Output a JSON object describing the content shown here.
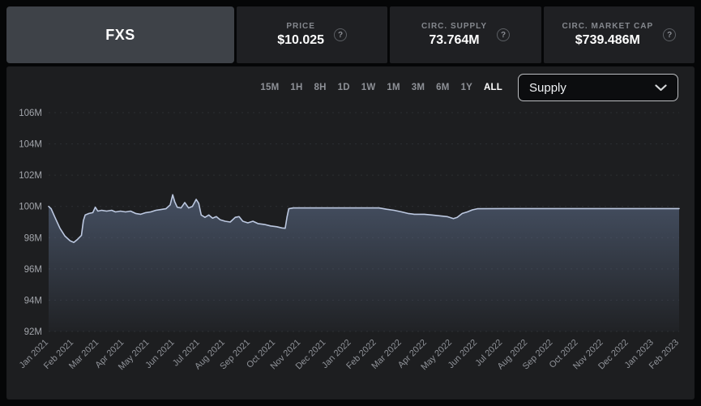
{
  "header": {
    "symbol": "FXS",
    "stats": [
      {
        "label": "PRICE",
        "value": "$10.025",
        "help_icon": "?"
      },
      {
        "label": "CIRC. SUPPLY",
        "value": "73.764M",
        "help_icon": "?"
      },
      {
        "label": "CIRC. MARKET CAP",
        "value": "$739.486M",
        "help_icon": "?"
      }
    ]
  },
  "toolbar": {
    "ranges": [
      "15M",
      "1H",
      "8H",
      "1D",
      "1W",
      "1M",
      "3M",
      "6M",
      "1Y",
      "ALL"
    ],
    "active_range": "ALL",
    "metric_dropdown": {
      "selected": "Supply",
      "chevron_icon": "chevron-down"
    }
  },
  "chart_data": {
    "type": "area",
    "title": "",
    "xlabel": "",
    "ylabel": "Supply",
    "unit": "M",
    "ylim": [
      92,
      106
    ],
    "grid": "horizontal-dashed",
    "legend_position": "none",
    "y_ticks": [
      "106M",
      "104M",
      "102M",
      "100M",
      "98M",
      "96M",
      "94M",
      "92M"
    ],
    "y_tick_values": [
      106,
      104,
      102,
      100,
      98,
      96,
      94,
      92
    ],
    "categories": [
      "Jan 2021",
      "Feb 2021",
      "Mar 2021",
      "Apr 2021",
      "May 2021",
      "Jun 2021",
      "Jul 2021",
      "Aug 2021",
      "Sep 2021",
      "Oct 2021",
      "Nov 2021",
      "Dec 2021",
      "Jan 2022",
      "Feb 2022",
      "Mar 2022",
      "Apr 2022",
      "May 2022",
      "Jun 2022",
      "Jul 2022",
      "Aug 2022",
      "Sep 2022",
      "Oct 2022",
      "Nov 2022",
      "Dec 2022",
      "Jan 2023",
      "Feb 2023"
    ],
    "series": [
      {
        "name": "Supply (M)",
        "points": [
          [
            0.0,
            100.0
          ],
          [
            0.1,
            99.85
          ],
          [
            0.25,
            99.3
          ],
          [
            0.45,
            98.6
          ],
          [
            0.65,
            98.1
          ],
          [
            0.85,
            97.8
          ],
          [
            1.0,
            97.7
          ],
          [
            1.15,
            97.9
          ],
          [
            1.3,
            98.15
          ],
          [
            1.38,
            99.1
          ],
          [
            1.45,
            99.45
          ],
          [
            1.6,
            99.55
          ],
          [
            1.75,
            99.6
          ],
          [
            1.85,
            99.95
          ],
          [
            1.95,
            99.7
          ],
          [
            2.1,
            99.75
          ],
          [
            2.3,
            99.7
          ],
          [
            2.5,
            99.75
          ],
          [
            2.65,
            99.65
          ],
          [
            2.85,
            99.7
          ],
          [
            3.05,
            99.65
          ],
          [
            3.25,
            99.7
          ],
          [
            3.45,
            99.55
          ],
          [
            3.65,
            99.5
          ],
          [
            3.85,
            99.6
          ],
          [
            4.05,
            99.65
          ],
          [
            4.25,
            99.75
          ],
          [
            4.45,
            99.8
          ],
          [
            4.65,
            99.85
          ],
          [
            4.82,
            100.1
          ],
          [
            4.92,
            100.75
          ],
          [
            5.0,
            100.3
          ],
          [
            5.1,
            99.95
          ],
          [
            5.25,
            99.9
          ],
          [
            5.4,
            100.25
          ],
          [
            5.55,
            99.9
          ],
          [
            5.7,
            100.0
          ],
          [
            5.85,
            100.45
          ],
          [
            5.95,
            100.2
          ],
          [
            6.05,
            99.45
          ],
          [
            6.2,
            99.3
          ],
          [
            6.35,
            99.45
          ],
          [
            6.5,
            99.25
          ],
          [
            6.65,
            99.35
          ],
          [
            6.8,
            99.15
          ],
          [
            7.0,
            99.05
          ],
          [
            7.2,
            99.0
          ],
          [
            7.4,
            99.3
          ],
          [
            7.55,
            99.35
          ],
          [
            7.7,
            99.05
          ],
          [
            7.9,
            98.95
          ],
          [
            8.1,
            99.05
          ],
          [
            8.3,
            98.9
          ],
          [
            8.55,
            98.85
          ],
          [
            8.8,
            98.75
          ],
          [
            9.05,
            98.7
          ],
          [
            9.25,
            98.62
          ],
          [
            9.38,
            98.6
          ],
          [
            9.45,
            99.3
          ],
          [
            9.52,
            99.85
          ],
          [
            9.7,
            99.9
          ],
          [
            10.5,
            99.9
          ],
          [
            11.5,
            99.9
          ],
          [
            12.5,
            99.9
          ],
          [
            13.1,
            99.9
          ],
          [
            13.4,
            99.82
          ],
          [
            13.7,
            99.75
          ],
          [
            14.0,
            99.65
          ],
          [
            14.25,
            99.55
          ],
          [
            14.5,
            99.5
          ],
          [
            14.9,
            99.5
          ],
          [
            15.2,
            99.45
          ],
          [
            15.5,
            99.4
          ],
          [
            15.8,
            99.35
          ],
          [
            16.05,
            99.22
          ],
          [
            16.2,
            99.3
          ],
          [
            16.4,
            99.55
          ],
          [
            16.6,
            99.65
          ],
          [
            16.8,
            99.78
          ],
          [
            17.0,
            99.85
          ],
          [
            18.0,
            99.86
          ],
          [
            20.0,
            99.86
          ],
          [
            22.0,
            99.86
          ],
          [
            24.0,
            99.86
          ],
          [
            25.0,
            99.86
          ]
        ]
      }
    ],
    "colors": {
      "line": "#bcc8e0",
      "fill_top": "#6e82a5",
      "grid": "#2c2e32",
      "y_tick_text": "#a2a5ab",
      "x_tick_text": "#8f9298",
      "panel_bg": "#1d1e20"
    }
  }
}
